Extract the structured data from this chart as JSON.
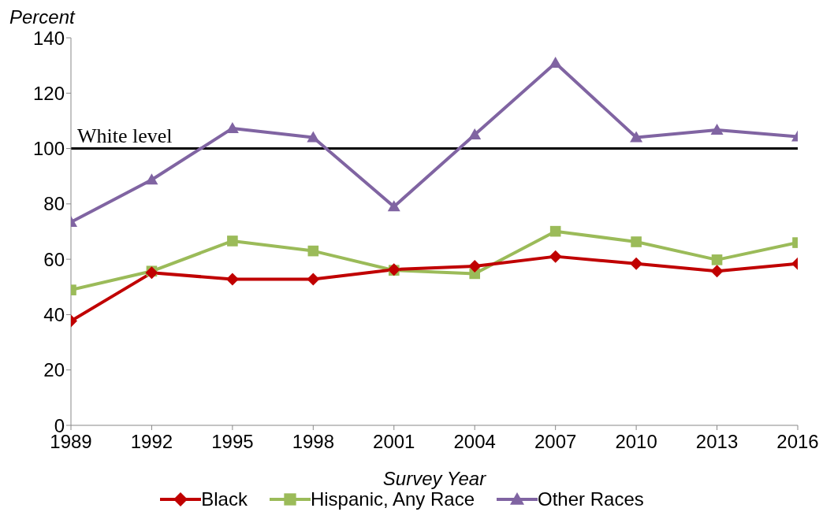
{
  "chart_data": {
    "type": "line",
    "xlabel": "Survey Year",
    "ylabel": "Percent",
    "x": [
      1989,
      1992,
      1995,
      1998,
      2001,
      2004,
      2007,
      2010,
      2013,
      2016
    ],
    "series": [
      {
        "name": "Black",
        "color": "#c00000",
        "marker": "diamond",
        "values": [
          37.7,
          55.1,
          52.8,
          52.8,
          56.3,
          57.5,
          61,
          58.4,
          55.7,
          58.4
        ]
      },
      {
        "name": "Hispanic, Any Race",
        "color": "#9bbb59",
        "marker": "square",
        "values": [
          48.9,
          55.7,
          66.6,
          63,
          56,
          54.8,
          70.1,
          66.3,
          59.8,
          66
        ]
      },
      {
        "name": "Other Races",
        "color": "#8064a2",
        "marker": "triangle",
        "values": [
          73.4,
          88.7,
          107.3,
          104,
          79,
          105,
          130.9,
          104,
          106.7,
          104.3
        ]
      }
    ],
    "ref_lines": [
      {
        "axis": "y",
        "value": 100,
        "label": "White level",
        "color": "#000000",
        "line_style": "solid"
      }
    ],
    "xlim": [
      1989,
      2016
    ],
    "xticks": [
      1989,
      1992,
      1995,
      1998,
      2001,
      2004,
      2007,
      2010,
      2013,
      2016
    ],
    "ylim": [
      0,
      140
    ],
    "yticks": [
      0,
      20,
      40,
      60,
      80,
      100,
      120,
      140
    ],
    "grid": false,
    "legend": "bottom",
    "line_style": "solid"
  }
}
